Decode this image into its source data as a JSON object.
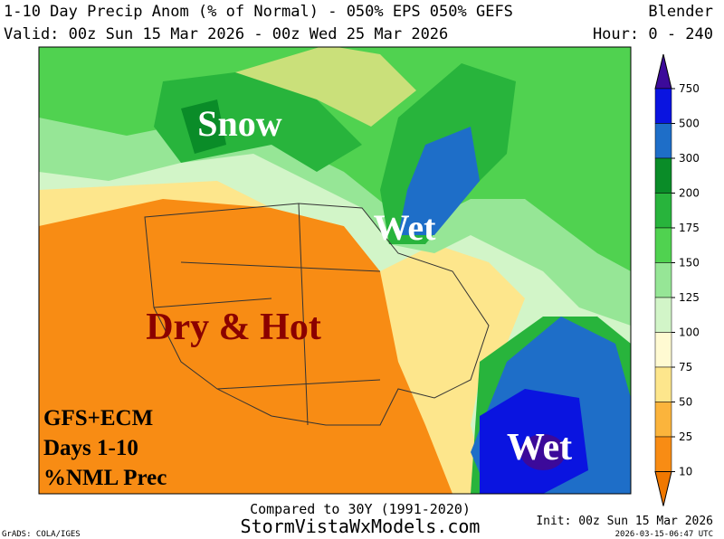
{
  "header": {
    "title": "1-10 Day Precip Anom (% of Normal) - 050% EPS 050% GEFS",
    "source": "Blender",
    "valid": "Valid: 00z Sun 15 Mar 2026 - 00z Wed 25 Mar 2026",
    "hours": "Hour: 0 - 240"
  },
  "map_labels": {
    "snow": "Snow",
    "wet_north": "Wet",
    "dry": "Dry & Hot",
    "wet_south": "Wet",
    "note": [
      "GFS+ECM",
      "Days 1-10",
      "%NML Prec"
    ]
  },
  "colorbar": {
    "ticks": [
      750,
      500,
      300,
      200,
      175,
      150,
      125,
      100,
      75,
      50,
      25,
      10
    ],
    "colors": [
      "#3c0a9a",
      "#0a14e0",
      "#1e6ec8",
      "#0a8c28",
      "#28b43c",
      "#50d250",
      "#96e696",
      "#d2f5c8",
      "#fffad2",
      "#fde68c",
      "#fbb43c",
      "#f88c14",
      "#f07800"
    ]
  },
  "footer": {
    "compared": "Compared to 30Y (1991-2020)",
    "site": "StormVistaWxModels.com",
    "init": "Init: 00z Sun 15 Mar 2026",
    "grads": "GrADS: COLA/IGES",
    "stamp": "2026-03-15-06:47 UTC"
  }
}
